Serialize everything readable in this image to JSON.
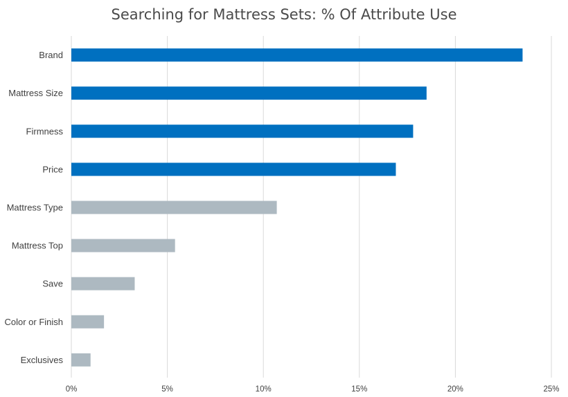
{
  "chart_data": {
    "type": "bar",
    "orientation": "horizontal",
    "title": "Searching for Mattress Sets: % Of Attribute Use",
    "xlabel": "",
    "ylabel": "",
    "categories": [
      "Brand",
      "Mattress Size",
      "Firmness",
      "Price",
      "Mattress Type",
      "Mattress Top",
      "Save",
      "Color or Finish",
      "Exclusives"
    ],
    "values": [
      23.5,
      18.5,
      17.8,
      16.9,
      10.7,
      5.4,
      3.3,
      1.7,
      1.0
    ],
    "highlight": [
      true,
      true,
      true,
      true,
      false,
      false,
      false,
      false,
      false
    ],
    "xlim": [
      0,
      25
    ],
    "xticks": [
      0,
      5,
      10,
      15,
      20,
      25
    ],
    "xtick_labels": [
      "0%",
      "5%",
      "10%",
      "15%",
      "20%",
      "25%"
    ],
    "grid": "vertical",
    "colors": {
      "highlight": "#0070c0",
      "muted": "#adb9c1"
    }
  }
}
